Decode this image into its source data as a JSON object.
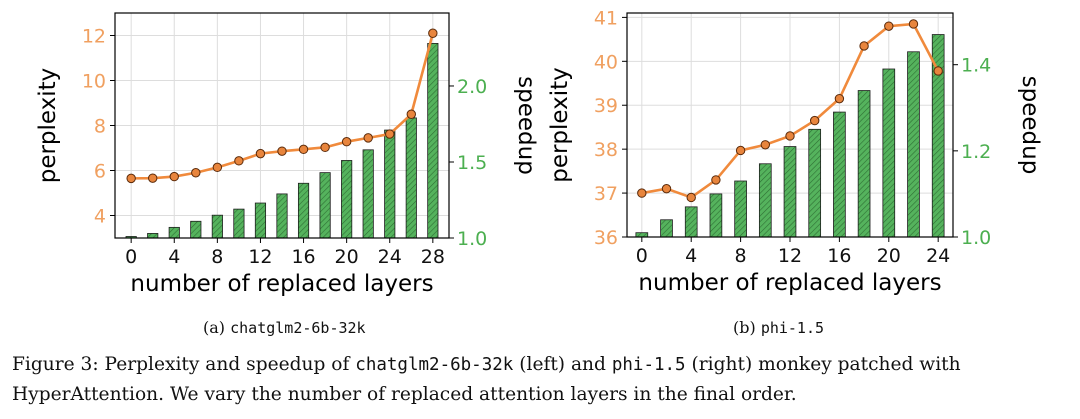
{
  "chart_data": [
    {
      "type": "bar+line",
      "id": "left",
      "xlabel": "number of replaced layers",
      "ylabel_left": "perplexity",
      "ylabel_right": "speedup",
      "x_ticks": [
        0,
        4,
        8,
        12,
        16,
        20,
        24,
        28
      ],
      "left_ticks": [
        4,
        6,
        8,
        10,
        12
      ],
      "right_ticks": [
        "1.0",
        "1.5",
        "2.0"
      ],
      "xlim": [
        -1.5,
        29.5
      ],
      "left_ylim": [
        3.0,
        13.0
      ],
      "right_ylim": [
        1.0,
        2.48
      ],
      "grid": true,
      "perplexity_color": "#f0a060",
      "speedup_color": "#4caf50",
      "series": [
        {
          "name": "perplexity",
          "axis": "left",
          "kind": "line",
          "x": [
            0,
            2,
            4,
            6,
            8,
            10,
            12,
            14,
            16,
            18,
            20,
            22,
            24,
            26,
            28
          ],
          "values": [
            5.65,
            5.66,
            5.73,
            5.9,
            6.14,
            6.43,
            6.75,
            6.86,
            6.94,
            7.03,
            7.28,
            7.45,
            7.62,
            8.5,
            12.1
          ]
        },
        {
          "name": "speedup",
          "axis": "right",
          "kind": "bar",
          "x": [
            0,
            2,
            4,
            6,
            8,
            10,
            12,
            14,
            16,
            18,
            20,
            22,
            24,
            26,
            28
          ],
          "values": [
            1.01,
            1.03,
            1.07,
            1.11,
            1.15,
            1.19,
            1.23,
            1.29,
            1.36,
            1.43,
            1.51,
            1.58,
            1.71,
            1.79,
            2.28
          ]
        }
      ]
    },
    {
      "type": "bar+line",
      "id": "right",
      "xlabel": "number of replaced layers",
      "ylabel_left": "perplexity",
      "ylabel_right": "speedup",
      "x_ticks": [
        0,
        4,
        8,
        12,
        16,
        20,
        24
      ],
      "left_ticks": [
        36,
        37,
        38,
        39,
        40,
        41
      ],
      "right_ticks": [
        "1.0",
        "1.2",
        "1.4"
      ],
      "xlim": [
        -1.2,
        25.2
      ],
      "left_ylim": [
        36.0,
        41.1
      ],
      "right_ylim": [
        1.0,
        1.52
      ],
      "grid": true,
      "perplexity_color": "#f0a060",
      "speedup_color": "#4caf50",
      "series": [
        {
          "name": "perplexity",
          "axis": "left",
          "kind": "line",
          "x": [
            0,
            2,
            4,
            6,
            8,
            10,
            12,
            14,
            16,
            18,
            20,
            22,
            24
          ],
          "values": [
            37.0,
            37.1,
            36.9,
            37.3,
            37.97,
            38.1,
            38.3,
            38.65,
            39.15,
            40.35,
            40.8,
            40.85,
            39.78
          ]
        },
        {
          "name": "speedup",
          "axis": "right",
          "kind": "bar",
          "x": [
            0,
            2,
            4,
            6,
            8,
            10,
            12,
            14,
            16,
            18,
            20,
            22,
            24
          ],
          "values": [
            1.01,
            1.04,
            1.07,
            1.1,
            1.13,
            1.17,
            1.21,
            1.25,
            1.29,
            1.34,
            1.39,
            1.43,
            1.47
          ]
        }
      ]
    }
  ],
  "subcaptions": {
    "left": {
      "prefix": "(a) ",
      "model": "chatglm2-6b-32k"
    },
    "right": {
      "prefix": "(b) ",
      "model": "phi-1.5"
    }
  },
  "caption": {
    "part1": "Figure 3: Perplexity and speedup of ",
    "model1": "chatglm2-6b-32k",
    "part2": " (left) and ",
    "model2": "phi-1.5",
    "part3": " (right) monkey patched with HyperAttention. We vary the number of replaced attention layers in the final order."
  }
}
